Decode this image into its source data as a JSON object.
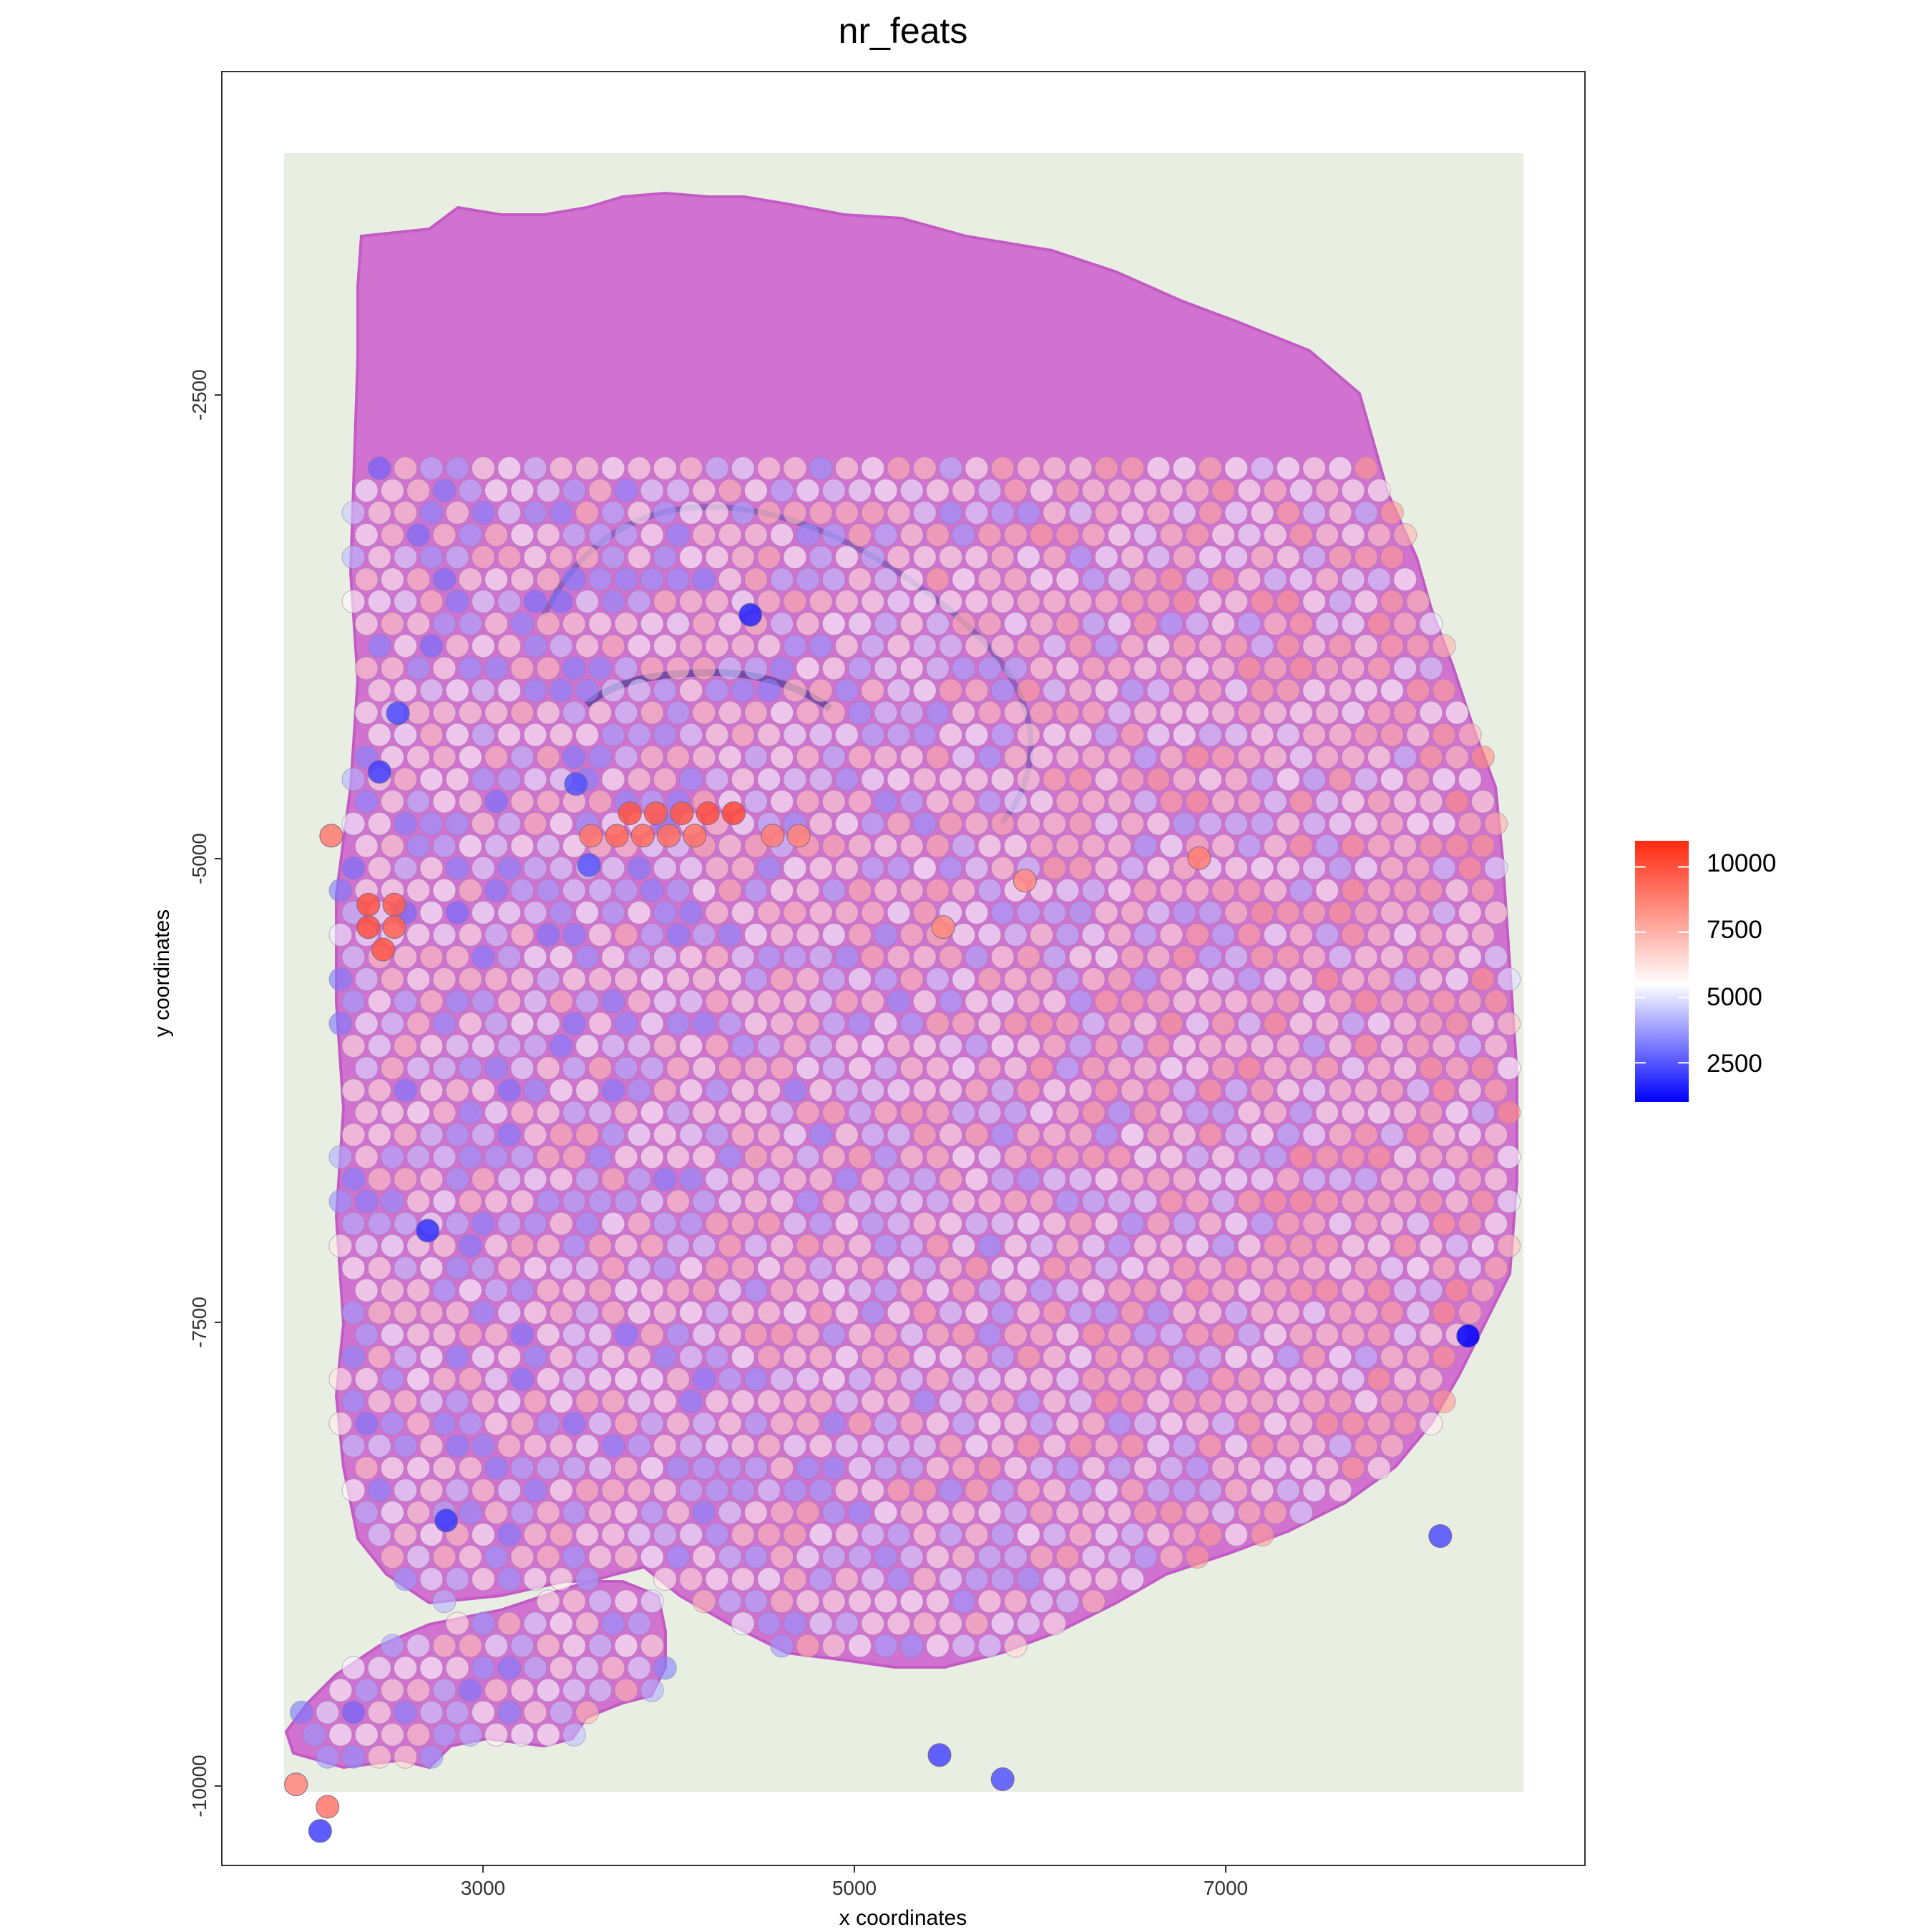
{
  "chart_data": {
    "type": "scatter",
    "title": "nr_feats",
    "xlabel": "x coordinates",
    "ylabel": "y coordinates",
    "xlim": [
      1650,
      9000
    ],
    "ylim": [
      -10300,
      100
    ],
    "x_ticks": [
      3000,
      5000,
      7000
    ],
    "y_ticks": [
      -2500,
      -5000,
      -7500,
      -10000
    ],
    "x_tick_labels": [
      "3000",
      "5000",
      "7000"
    ],
    "y_tick_labels": [
      "-2500",
      "-5000",
      "-7500",
      "-10000"
    ],
    "grid": false,
    "legend": {
      "position": "right",
      "type": "colorbar",
      "range": [
        1000,
        11000
      ],
      "ticks": [
        2500,
        5000,
        7500,
        10000
      ],
      "tick_labels": [
        "2500",
        "5000",
        "7500",
        "10000"
      ],
      "colors": [
        "#0000ff",
        "#ffffff",
        "#ff0000"
      ]
    },
    "background_image": "H&E stained brain tissue section",
    "tissue_color": "#d272d0",
    "spot_spacing": 140,
    "high_value_spots": [
      {
        "x": 3850,
        "y": -4200,
        "value": 9800
      },
      {
        "x": 3990,
        "y": -4200,
        "value": 9600
      },
      {
        "x": 4130,
        "y": -4200,
        "value": 9700
      },
      {
        "x": 4270,
        "y": -4200,
        "value": 9900
      },
      {
        "x": 4410,
        "y": -4200,
        "value": 10100
      },
      {
        "x": 3640,
        "y": -4330,
        "value": 8800
      },
      {
        "x": 3780,
        "y": -4330,
        "value": 9200
      },
      {
        "x": 3920,
        "y": -4330,
        "value": 9100
      },
      {
        "x": 4060,
        "y": -4330,
        "value": 9000
      },
      {
        "x": 4200,
        "y": -4330,
        "value": 8900
      },
      {
        "x": 4620,
        "y": -4330,
        "value": 8600
      },
      {
        "x": 4760,
        "y": -4330,
        "value": 8400
      },
      {
        "x": 2440,
        "y": -4730,
        "value": 9800
      },
      {
        "x": 2580,
        "y": -4730,
        "value": 9500
      },
      {
        "x": 2440,
        "y": -4860,
        "value": 9900
      },
      {
        "x": 2580,
        "y": -4860,
        "value": 9400
      },
      {
        "x": 2520,
        "y": -4990,
        "value": 9700
      },
      {
        "x": 2240,
        "y": -4330,
        "value": 8700
      },
      {
        "x": 6920,
        "y": -4460,
        "value": 8600
      },
      {
        "x": 5980,
        "y": -4590,
        "value": 8200
      },
      {
        "x": 5540,
        "y": -4860,
        "value": 8300
      },
      {
        "x": 2220,
        "y": -9960,
        "value": 8800
      },
      {
        "x": 2050,
        "y": -9830,
        "value": 8400
      },
      {
        "x": 8370,
        "y": -7230,
        "value": 1000
      },
      {
        "x": 4500,
        "y": -3050,
        "value": 1600
      },
      {
        "x": 2760,
        "y": -6620,
        "value": 1800
      },
      {
        "x": 2860,
        "y": -8300,
        "value": 1900
      },
      {
        "x": 2180,
        "y": -10100,
        "value": 2000
      },
      {
        "x": 8220,
        "y": -8390,
        "value": 2200
      },
      {
        "x": 5860,
        "y": -9800,
        "value": 2300
      },
      {
        "x": 5520,
        "y": -9660,
        "value": 2100
      },
      {
        "x": 3630,
        "y": -4500,
        "value": 2400
      },
      {
        "x": 3560,
        "y": -4030,
        "value": 2300
      },
      {
        "x": 2500,
        "y": -3960,
        "value": 2000
      },
      {
        "x": 2600,
        "y": -3620,
        "value": 2200
      }
    ]
  }
}
